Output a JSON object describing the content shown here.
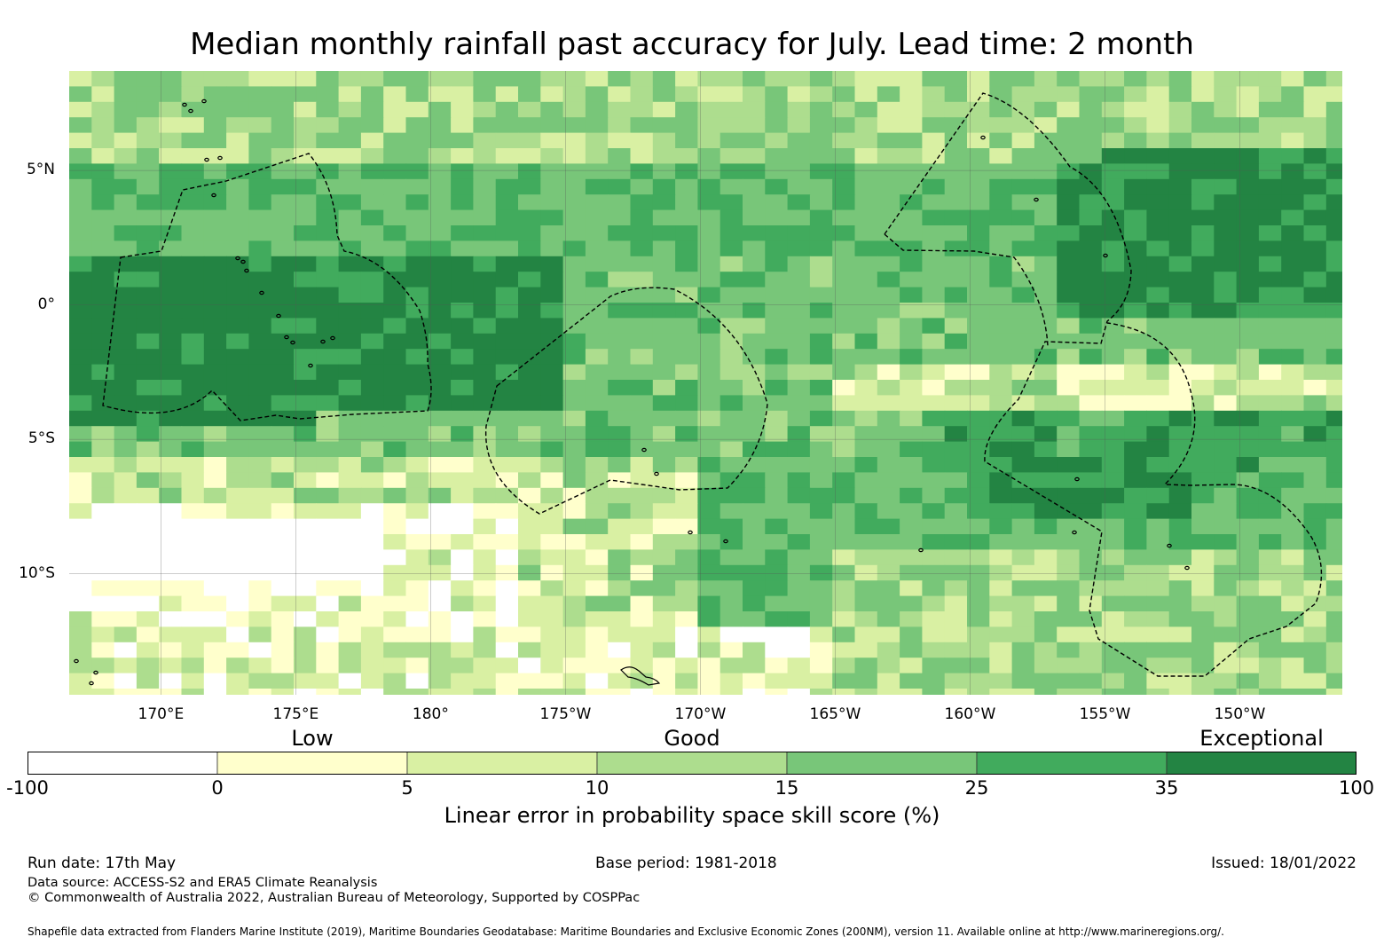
{
  "title": "Median monthly rainfall past accuracy for July. Lead time: 2 month",
  "map": {
    "lon_range": [
      166.6,
      213.8
    ],
    "lat_range": [
      -14.5,
      8.7
    ],
    "x_ticks": [
      {
        "label": "170°E",
        "lon": 170
      },
      {
        "label": "175°E",
        "lon": 175
      },
      {
        "label": "180°",
        "lon": 180
      },
      {
        "label": "175°W",
        "lon": 185
      },
      {
        "label": "170°W",
        "lon": 190
      },
      {
        "label": "165°W",
        "lon": 195
      },
      {
        "label": "160°W",
        "lon": 200
      },
      {
        "label": "155°W",
        "lon": 205
      },
      {
        "label": "150°W",
        "lon": 210
      }
    ],
    "y_ticks": [
      {
        "label": "5°N",
        "lat": 5
      },
      {
        "label": "0°",
        "lat": 0
      },
      {
        "label": "5°S",
        "lat": -5
      },
      {
        "label": "10°S",
        "lat": -10
      }
    ],
    "gridlines": true,
    "eez_boundaries": "dashed"
  },
  "legend": {
    "categories": [
      {
        "label": "Low",
        "value": 0
      },
      {
        "label": "Good",
        "value": 10
      },
      {
        "label": "Exceptional",
        "value": 35
      }
    ],
    "bins": [
      {
        "from": -100,
        "to": 0,
        "color": "#ffffff"
      },
      {
        "from": 0,
        "to": 5,
        "color": "#ffffcc"
      },
      {
        "from": 5,
        "to": 10,
        "color": "#d9f0a3"
      },
      {
        "from": 10,
        "to": 15,
        "color": "#addd8e"
      },
      {
        "from": 15,
        "to": 25,
        "color": "#78c679"
      },
      {
        "from": 25,
        "to": 35,
        "color": "#41ab5d"
      },
      {
        "from": 35,
        "to": 100,
        "color": "#238443"
      }
    ],
    "tick_labels": [
      "-100",
      "0",
      "5",
      "10",
      "15",
      "25",
      "35",
      "100"
    ],
    "label": "Linear error in probability space skill score (%)"
  },
  "footer": {
    "run_date": "Run date: 17th May",
    "base_period": "Base period: 1981-2018",
    "issued": "Issued: 18/01/2022",
    "data_source": "Data source: ACCESS-S2 and ERA5 Climate Reanalysis",
    "copyright": "© Commonwealth of Australia 2022, Australian Bureau of Meteorology, Supported by COSPPac",
    "shapefile": "Shapefile data extracted from Flanders Marine Institute (2019), Maritime Boundaries Geodatabase: Maritime Boundaries and Exclusive Economic Zones (200NM), version 11. Available online at http://www.marineregions.org/."
  }
}
